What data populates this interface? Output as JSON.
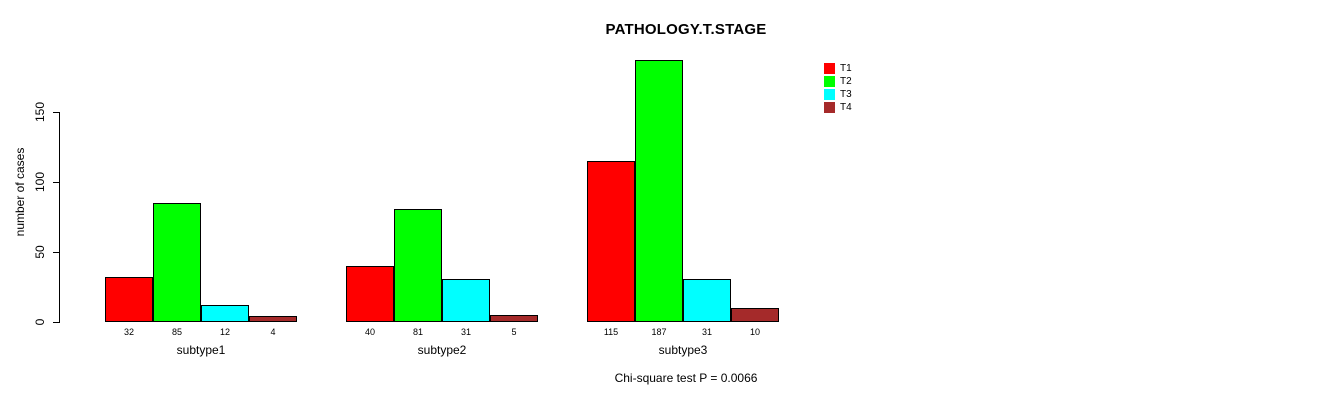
{
  "chart_data": {
    "type": "bar",
    "title": "PATHOLOGY.T.STAGE",
    "ylabel": "number of cases",
    "xlabel": "",
    "categories": [
      "subtype1",
      "subtype2",
      "subtype3"
    ],
    "series": [
      {
        "name": "T1",
        "color": "#FF0000",
        "values": [
          32,
          40,
          115
        ]
      },
      {
        "name": "T2",
        "color": "#00FF00",
        "values": [
          85,
          81,
          187
        ]
      },
      {
        "name": "T3",
        "color": "#00FFFF",
        "values": [
          12,
          31,
          31
        ]
      },
      {
        "name": "T4",
        "color": "#A52A2A",
        "values": [
          4,
          5,
          10
        ]
      }
    ],
    "bar_value_labels": [
      [
        "32",
        "85",
        "12",
        "4"
      ],
      [
        "40",
        "81",
        "31",
        "5"
      ],
      [
        "115",
        "187",
        "31",
        "10"
      ]
    ],
    "yticks": [
      "0",
      "50",
      "100",
      "150"
    ],
    "ylim": [
      0,
      150
    ],
    "grid": false,
    "legend_position": "top-right",
    "legend_entries": [
      "T1",
      "T2",
      "T3",
      "T4"
    ],
    "annotation": "Chi-square test P = 0.0066"
  },
  "colors": {
    "background": "#FFFFFF",
    "text": "#000000",
    "bar_border": "#000000",
    "axis": "#000000"
  }
}
